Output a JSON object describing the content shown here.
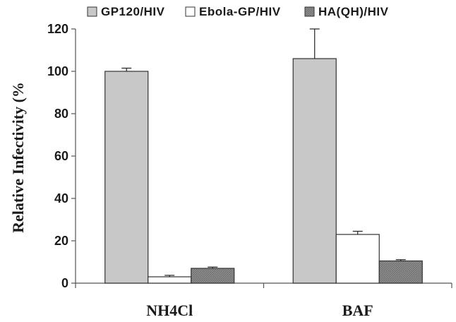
{
  "chart_data": {
    "type": "bar",
    "title": "",
    "xlabel": "",
    "ylabel": "Relative Infectivity (%",
    "ylim": [
      0,
      120
    ],
    "yticks": [
      "0",
      "20",
      "40",
      "60",
      "80",
      "100",
      "120"
    ],
    "grid": false,
    "legend_position": "top",
    "categories": [
      "NH4Cl",
      "BAF"
    ],
    "series": [
      {
        "name": "GP120/HIV",
        "values": [
          100,
          106
        ],
        "errors": [
          1.5,
          14
        ],
        "color": "#c8c8c8"
      },
      {
        "name": "Ebola-GP/HIV",
        "values": [
          3,
          23
        ],
        "errors": [
          0.7,
          1.5
        ],
        "color": "#ffffff"
      },
      {
        "name": "HA(QH)/HIV",
        "values": [
          7,
          10.5
        ],
        "errors": [
          0.6,
          0.6
        ],
        "color": "#8c8c8c"
      }
    ]
  }
}
